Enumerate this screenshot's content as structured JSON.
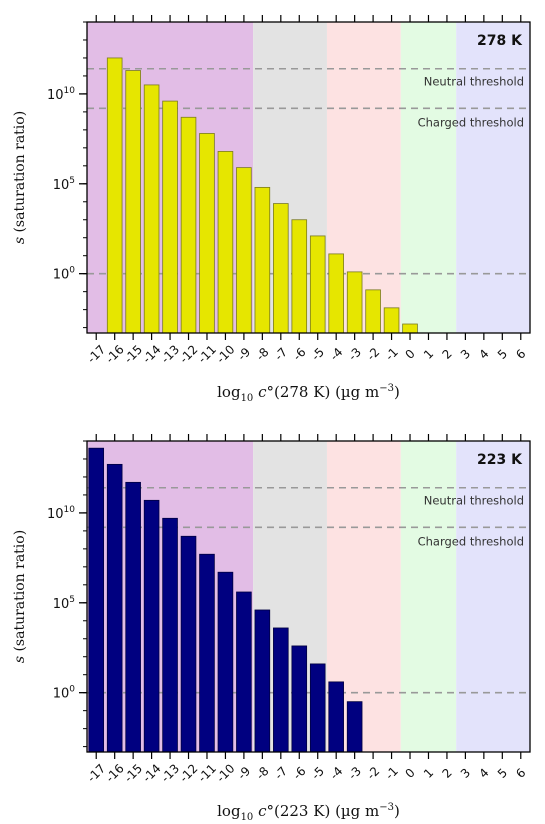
{
  "chart_data": [
    {
      "type": "bar",
      "temperature_label": "278 K",
      "x_label_text": "log10 c°(278 K) (µg m−3)",
      "x_label_math": {
        "log": "log",
        "sub": "10",
        "c": "c",
        "deg": "°",
        "temp": "(278 K)",
        "units": "(µg m",
        "exp": "−3",
        "close": ")"
      },
      "y_label_math": {
        "s": "s",
        "rest": "(saturation ratio)"
      },
      "bar_color": "#e6e600",
      "bar_edge": "#7a7a20",
      "categories": [
        -17,
        -16,
        -15,
        -14,
        -13,
        -12,
        -11,
        -10,
        -9,
        -8,
        -7,
        -6,
        -5,
        -4,
        -3,
        -2,
        -1,
        0,
        1,
        2,
        3,
        4,
        5,
        6
      ],
      "x_tick_labels": [
        "-17",
        "-16",
        "-15",
        "-14",
        "-13",
        "-12",
        "-11",
        "-10",
        "-9",
        "-8",
        "-7",
        "-6",
        "-5",
        "-4",
        "-3",
        "-2",
        "-1",
        "0",
        "1",
        "2",
        "3",
        "4",
        "5",
        "6"
      ],
      "log10_values": [
        null,
        12.0,
        11.3,
        10.5,
        9.6,
        8.7,
        7.8,
        6.8,
        5.9,
        4.8,
        3.9,
        3.0,
        2.1,
        1.1,
        0.1,
        -0.9,
        -1.9,
        -2.8,
        null,
        null,
        null,
        null,
        null,
        null
      ],
      "y_log_range": [
        -3.3,
        14.0
      ],
      "y_ticks": [
        {
          "base": "10",
          "exp": "0",
          "value": 0
        },
        {
          "base": "10",
          "exp": "5",
          "value": 5
        },
        {
          "base": "10",
          "exp": "10",
          "value": 10
        }
      ],
      "volatility_bands": [
        {
          "from": -17.5,
          "to": -8.5,
          "color": "#e2bde6"
        },
        {
          "from": -8.5,
          "to": -4.5,
          "color": "#e3e3e3"
        },
        {
          "from": -4.5,
          "to": -0.5,
          "color": "#fde2e2"
        },
        {
          "from": -0.5,
          "to": 2.5,
          "color": "#e3fbe3"
        },
        {
          "from": 2.5,
          "to": 6.5,
          "color": "#e3e3fb"
        }
      ],
      "thresholds": [
        {
          "label": "Neutral threshold",
          "log10_value": 11.4
        },
        {
          "label": "Charged threshold",
          "log10_value": 9.2
        },
        {
          "label": "",
          "log10_value": 0
        }
      ]
    },
    {
      "type": "bar",
      "temperature_label": "223 K",
      "x_label_text": "log10 c°(223 K) (µg m−3)",
      "x_label_math": {
        "log": "log",
        "sub": "10",
        "c": "c",
        "deg": "°",
        "temp": "(223 K)",
        "units": "(µg m",
        "exp": "−3",
        "close": ")"
      },
      "y_label_math": {
        "s": "s",
        "rest": "(saturation ratio)"
      },
      "bar_color": "#000080",
      "bar_edge": "#000040",
      "categories": [
        -17,
        -16,
        -15,
        -14,
        -13,
        -12,
        -11,
        -10,
        -9,
        -8,
        -7,
        -6,
        -5,
        -4,
        -3,
        -2,
        -1,
        0,
        1,
        2,
        3,
        4,
        5,
        6
      ],
      "x_tick_labels": [
        "-17",
        "-16",
        "-15",
        "-14",
        "-13",
        "-12",
        "-11",
        "-10",
        "-9",
        "-8",
        "-7",
        "-6",
        "-5",
        "-4",
        "-3",
        "-2",
        "-1",
        "0",
        "1",
        "2",
        "3",
        "4",
        "5",
        "6"
      ],
      "log10_values": [
        13.6,
        12.7,
        11.7,
        10.7,
        9.7,
        8.7,
        7.7,
        6.7,
        5.6,
        4.6,
        3.6,
        2.6,
        1.6,
        0.6,
        -0.5,
        null,
        null,
        null,
        null,
        null,
        null,
        null,
        null,
        null
      ],
      "y_log_range": [
        -3.3,
        14.0
      ],
      "y_ticks": [
        {
          "base": "10",
          "exp": "0",
          "value": 0
        },
        {
          "base": "10",
          "exp": "5",
          "value": 5
        },
        {
          "base": "10",
          "exp": "10",
          "value": 10
        }
      ],
      "volatility_bands": [
        {
          "from": -17.5,
          "to": -8.5,
          "color": "#e2bde6"
        },
        {
          "from": -8.5,
          "to": -4.5,
          "color": "#e3e3e3"
        },
        {
          "from": -4.5,
          "to": -0.5,
          "color": "#fde2e2"
        },
        {
          "from": -0.5,
          "to": 2.5,
          "color": "#e3fbe3"
        },
        {
          "from": 2.5,
          "to": 6.5,
          "color": "#e3e3fb"
        }
      ],
      "thresholds": [
        {
          "label": "Neutral threshold",
          "log10_value": 11.4
        },
        {
          "label": "Charged threshold",
          "log10_value": 9.2
        },
        {
          "label": "",
          "log10_value": 0
        }
      ]
    }
  ]
}
